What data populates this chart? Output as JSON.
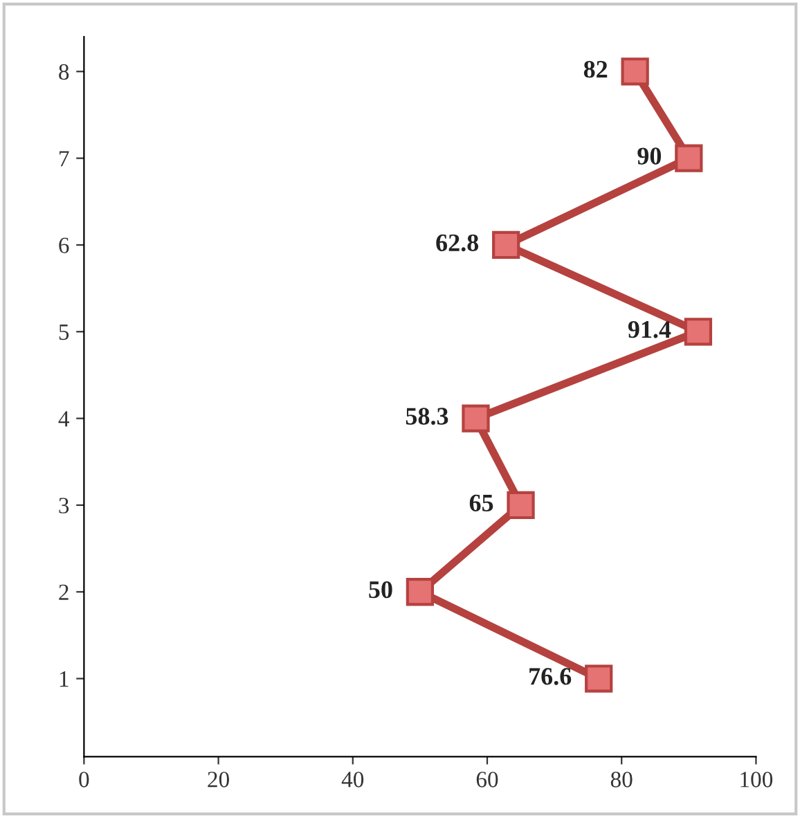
{
  "chart_data": {
    "type": "line",
    "x": [
      76.6,
      50,
      65,
      58.3,
      91.4,
      62.8,
      90,
      82
    ],
    "series": [
      {
        "color": "#b5423f",
        "values": [
          1,
          2,
          3,
          4,
          5,
          6,
          7,
          8
        ]
      }
    ],
    "xlim": [
      0,
      100
    ],
    "xticks": [
      0,
      20,
      40,
      60,
      80,
      100
    ],
    "ylim": [
      0.1,
      8.4
    ],
    "yticks": [
      1,
      2,
      3,
      4,
      5,
      6,
      7,
      8
    ],
    "marker": "square",
    "line_style": "solid",
    "grid": false,
    "annotations": [
      {
        "text": "76.6",
        "x": 76.6,
        "y": 1
      },
      {
        "text": "50",
        "x": 50,
        "y": 2
      },
      {
        "text": "65",
        "x": 65,
        "y": 3
      },
      {
        "text": "58.3",
        "x": 58.3,
        "y": 4
      },
      {
        "text": "91.4",
        "x": 91.4,
        "y": 5
      },
      {
        "text": "62.8",
        "x": 62.8,
        "y": 6
      },
      {
        "text": "90",
        "x": 90,
        "y": 7
      },
      {
        "text": "82",
        "x": 82,
        "y": 8
      }
    ]
  }
}
